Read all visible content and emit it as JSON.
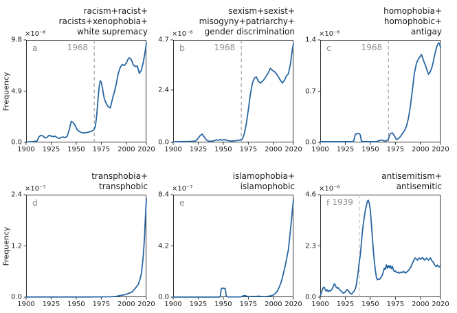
{
  "figure": {
    "ylabel": "Frequency"
  },
  "colors": {
    "line": "#2766a3",
    "vline": "#8f8f8f",
    "vline_light": "#b3b3b3",
    "annotation": "#8f8f8f",
    "spine": "#2e2e2e"
  },
  "xticks": {
    "values": [
      1900,
      1925,
      1950,
      1975,
      2000,
      2020
    ],
    "labels": [
      "1900",
      "1925",
      "1950",
      "1975",
      "2000",
      "2020"
    ]
  },
  "chart_data": [
    {
      "letter": "a",
      "type": "line",
      "title_lines": [
        "racism+racist+",
        "racists+xenophobia+",
        "white supremacy"
      ],
      "exponent": "×10⁻⁶",
      "xlim": [
        1900,
        2020
      ],
      "ylim": [
        0,
        9.8
      ],
      "yticks": {
        "values": [
          0,
          4.9,
          9.8
        ],
        "labels": [
          "0.0",
          "4.9",
          "9.8"
        ]
      },
      "vline": {
        "x": 1968,
        "label": "1968"
      },
      "series": {
        "x": [
          1900,
          1903,
          1906,
          1909,
          1911,
          1913,
          1915,
          1917,
          1919,
          1921,
          1923,
          1925,
          1927,
          1929,
          1931,
          1933,
          1935,
          1937,
          1939,
          1941,
          1943,
          1945,
          1947,
          1949,
          1951,
          1953,
          1955,
          1957,
          1959,
          1961,
          1963,
          1965,
          1967,
          1968,
          1969,
          1970,
          1971,
          1972,
          1973,
          1974,
          1975,
          1976,
          1977,
          1978,
          1980,
          1982,
          1984,
          1986,
          1988,
          1990,
          1992,
          1994,
          1996,
          1998,
          2000,
          2002,
          2003,
          2005,
          2007,
          2009,
          2011,
          2013,
          2015,
          2017,
          2019,
          2020
        ],
        "y": [
          0.05,
          0.05,
          0.07,
          0.1,
          0.15,
          0.55,
          0.68,
          0.6,
          0.42,
          0.5,
          0.68,
          0.6,
          0.55,
          0.6,
          0.45,
          0.38,
          0.48,
          0.52,
          0.45,
          0.6,
          1.2,
          2.0,
          1.9,
          1.6,
          1.2,
          1.05,
          0.95,
          0.9,
          0.92,
          0.95,
          1.0,
          1.05,
          1.15,
          1.3,
          1.5,
          2.2,
          3.2,
          4.4,
          5.4,
          5.9,
          5.75,
          5.3,
          4.7,
          4.2,
          3.7,
          3.4,
          3.3,
          4.1,
          4.8,
          5.6,
          6.6,
          7.2,
          7.45,
          7.35,
          7.6,
          8.0,
          8.1,
          7.9,
          7.4,
          7.25,
          7.3,
          6.6,
          6.9,
          7.7,
          8.8,
          9.5
        ]
      }
    },
    {
      "letter": "b",
      "type": "line",
      "title_lines": [
        "sexism+sexist+",
        "misogyny+patriarchy+",
        "gender discrimination"
      ],
      "exponent": "×10⁻⁶",
      "xlim": [
        1900,
        2020
      ],
      "ylim": [
        0,
        4.7
      ],
      "yticks": {
        "values": [
          0,
          2.4,
          4.7
        ],
        "labels": [
          "0.0",
          "2.4",
          "4.7"
        ]
      },
      "vline": {
        "x": 1968,
        "label": "1968"
      },
      "series": {
        "x": [
          1900,
          1905,
          1910,
          1915,
          1920,
          1923,
          1925,
          1927,
          1929,
          1931,
          1933,
          1935,
          1938,
          1941,
          1943,
          1945,
          1947,
          1949,
          1951,
          1953,
          1955,
          1958,
          1961,
          1964,
          1967,
          1969,
          1971,
          1973,
          1975,
          1977,
          1979,
          1981,
          1983,
          1985,
          1987,
          1989,
          1991,
          1993,
          1995,
          1997,
          1999,
          2001,
          2003,
          2005,
          2007,
          2009,
          2011,
          2013,
          2015,
          2017,
          2019,
          2020
        ],
        "y": [
          0.03,
          0.03,
          0.04,
          0.04,
          0.05,
          0.08,
          0.2,
          0.32,
          0.38,
          0.25,
          0.12,
          0.06,
          0.05,
          0.08,
          0.12,
          0.1,
          0.13,
          0.1,
          0.13,
          0.1,
          0.08,
          0.06,
          0.07,
          0.09,
          0.11,
          0.15,
          0.4,
          0.85,
          1.5,
          2.2,
          2.7,
          2.95,
          3.0,
          2.8,
          2.72,
          2.8,
          2.9,
          3.05,
          3.2,
          3.4,
          3.3,
          3.25,
          3.15,
          3.0,
          2.85,
          2.72,
          2.85,
          3.05,
          3.15,
          3.6,
          4.3,
          4.5
        ]
      }
    },
    {
      "letter": "c",
      "type": "line",
      "title_lines": [
        "homophobia+",
        "homophobic+",
        "antigay"
      ],
      "exponent": "×10⁻⁶",
      "xlim": [
        1900,
        2020
      ],
      "ylim": [
        0,
        1.4
      ],
      "yticks": {
        "values": [
          0,
          0.7,
          1.4
        ],
        "labels": [
          "0.0",
          "0.7",
          "1.4"
        ]
      },
      "vline": {
        "x": 1968,
        "label": "1968"
      },
      "series": {
        "x": [
          1900,
          1910,
          1920,
          1930,
          1933,
          1934,
          1935,
          1937,
          1939,
          1940,
          1941,
          1943,
          1950,
          1956,
          1958,
          1960,
          1962,
          1964,
          1966,
          1968,
          1969,
          1970,
          1972,
          1974,
          1976,
          1978,
          1980,
          1982,
          1984,
          1986,
          1988,
          1990,
          1992,
          1994,
          1996,
          1998,
          2000,
          2001,
          2003,
          2005,
          2007,
          2008,
          2010,
          2012,
          2014,
          2016,
          2018,
          2019,
          2020
        ],
        "y": [
          0.01,
          0.01,
          0.01,
          0.01,
          0.01,
          0.05,
          0.11,
          0.12,
          0.12,
          0.1,
          0.02,
          0.01,
          0.01,
          0.01,
          0.02,
          0.03,
          0.03,
          0.02,
          0.02,
          0.04,
          0.09,
          0.12,
          0.13,
          0.09,
          0.04,
          0.05,
          0.08,
          0.12,
          0.16,
          0.22,
          0.33,
          0.5,
          0.72,
          0.95,
          1.08,
          1.14,
          1.18,
          1.2,
          1.12,
          1.05,
          0.97,
          0.93,
          0.97,
          1.05,
          1.18,
          1.3,
          1.36,
          1.35,
          1.3
        ]
      }
    },
    {
      "letter": "d",
      "type": "line",
      "title_lines": [
        "transphobia+",
        "transphobic"
      ],
      "exponent": "×10⁻⁷",
      "xlim": [
        1900,
        2020
      ],
      "ylim": [
        0,
        2.4
      ],
      "yticks": {
        "values": [
          0,
          1.2,
          2.4
        ],
        "labels": [
          "0.0",
          "1.2",
          "2.4"
        ]
      },
      "series": {
        "x": [
          1900,
          1920,
          1940,
          1960,
          1975,
          1985,
          1990,
          1994,
          1997,
          2000,
          2002,
          2004,
          2006,
          2008,
          2010,
          2012,
          2014,
          2015,
          2016,
          2017,
          2018,
          2019,
          2020
        ],
        "y": [
          0.005,
          0.005,
          0.005,
          0.005,
          0.008,
          0.01,
          0.02,
          0.04,
          0.05,
          0.065,
          0.09,
          0.1,
          0.13,
          0.18,
          0.24,
          0.3,
          0.45,
          0.55,
          0.75,
          1.0,
          1.35,
          1.85,
          2.3
        ]
      }
    },
    {
      "letter": "e",
      "type": "line",
      "title_lines": [
        "islamophobia+",
        "islamophobic"
      ],
      "exponent": "×10⁻⁷",
      "xlim": [
        1900,
        2020
      ],
      "ylim": [
        0,
        8.4
      ],
      "yticks": {
        "values": [
          0,
          4.2,
          8.4
        ],
        "labels": [
          "0.0",
          "4.2",
          "8.4"
        ]
      },
      "series": {
        "x": [
          1900,
          1915,
          1930,
          1945,
          1947,
          1948,
          1950,
          1952,
          1953,
          1955,
          1960,
          1965,
          1968,
          1970,
          1972,
          1974,
          1976,
          1979,
          1982,
          1985,
          1988,
          1991,
          1994,
          1997,
          2000,
          2002,
          2004,
          2006,
          2008,
          2010,
          2012,
          2014,
          2015,
          2016,
          2017,
          2018,
          2019,
          2020
        ],
        "y": [
          0.01,
          0.01,
          0.01,
          0.01,
          0.04,
          0.72,
          0.74,
          0.7,
          0.06,
          0.02,
          0.02,
          0.02,
          0.03,
          0.12,
          0.13,
          0.06,
          0.05,
          0.07,
          0.06,
          0.08,
          0.06,
          0.05,
          0.07,
          0.1,
          0.18,
          0.3,
          0.5,
          0.85,
          1.3,
          1.95,
          2.65,
          3.5,
          3.9,
          4.7,
          5.5,
          6.3,
          7.2,
          8.0
        ]
      }
    },
    {
      "letter": "f",
      "type": "line",
      "title_lines": [
        "antisemitism+",
        "antisemitic"
      ],
      "exponent": "×10⁻⁶",
      "xlim": [
        1900,
        2020
      ],
      "ylim": [
        0,
        4.6
      ],
      "yticks": {
        "values": [
          0,
          2.3,
          4.6
        ],
        "labels": [
          "0.0",
          "2.3",
          "4.6"
        ]
      },
      "vline": {
        "x": 1939,
        "label": "1939",
        "light": true
      },
      "series": {
        "x": [
          1900,
          1901,
          1902,
          1903,
          1904,
          1905,
          1906,
          1907,
          1908,
          1909,
          1910,
          1911,
          1912,
          1913,
          1914,
          1915,
          1916,
          1917,
          1918,
          1919,
          1920,
          1921,
          1922,
          1923,
          1924,
          1925,
          1926,
          1927,
          1928,
          1929,
          1930,
          1931,
          1932,
          1933,
          1934,
          1935,
          1936,
          1937,
          1938,
          1939,
          1940,
          1941,
          1942,
          1943,
          1944,
          1945,
          1946,
          1947,
          1948,
          1949,
          1950,
          1951,
          1952,
          1953,
          1954,
          1955,
          1956,
          1957,
          1958,
          1959,
          1960,
          1961,
          1962,
          1963,
          1964,
          1965,
          1966,
          1967,
          1968,
          1969,
          1970,
          1971,
          1972,
          1973,
          1974,
          1975,
          1976,
          1977,
          1978,
          1979,
          1980,
          1981,
          1982,
          1983,
          1984,
          1985,
          1986,
          1987,
          1988,
          1989,
          1990,
          1991,
          1992,
          1993,
          1994,
          1995,
          1996,
          1997,
          1998,
          1999,
          2000,
          2001,
          2002,
          2003,
          2004,
          2005,
          2006,
          2007,
          2008,
          2009,
          2010,
          2011,
          2012,
          2013,
          2014,
          2015,
          2016,
          2017,
          2018,
          2019,
          2020
        ],
        "y": [
          0.05,
          0.18,
          0.32,
          0.43,
          0.45,
          0.34,
          0.27,
          0.33,
          0.25,
          0.3,
          0.27,
          0.32,
          0.38,
          0.48,
          0.6,
          0.55,
          0.44,
          0.4,
          0.43,
          0.36,
          0.3,
          0.27,
          0.22,
          0.18,
          0.2,
          0.24,
          0.3,
          0.34,
          0.3,
          0.22,
          0.17,
          0.14,
          0.17,
          0.24,
          0.28,
          0.38,
          0.55,
          0.85,
          1.2,
          1.6,
          1.9,
          2.4,
          2.9,
          3.3,
          3.6,
          3.9,
          4.1,
          4.3,
          4.35,
          4.2,
          3.9,
          3.3,
          2.7,
          2.1,
          1.6,
          1.2,
          0.9,
          0.78,
          0.82,
          0.8,
          0.85,
          0.92,
          1.0,
          1.15,
          1.3,
          1.25,
          1.45,
          1.3,
          1.42,
          1.32,
          1.42,
          1.28,
          1.38,
          1.22,
          1.15,
          1.18,
          1.12,
          1.1,
          1.13,
          1.08,
          1.1,
          1.13,
          1.1,
          1.16,
          1.12,
          1.08,
          1.12,
          1.16,
          1.2,
          1.26,
          1.32,
          1.42,
          1.52,
          1.62,
          1.72,
          1.76,
          1.7,
          1.66,
          1.72,
          1.76,
          1.7,
          1.73,
          1.78,
          1.72,
          1.66,
          1.7,
          1.76,
          1.7,
          1.66,
          1.72,
          1.76,
          1.66,
          1.6,
          1.56,
          1.46,
          1.4,
          1.38,
          1.44,
          1.38,
          1.36,
          1.4
        ]
      }
    }
  ]
}
